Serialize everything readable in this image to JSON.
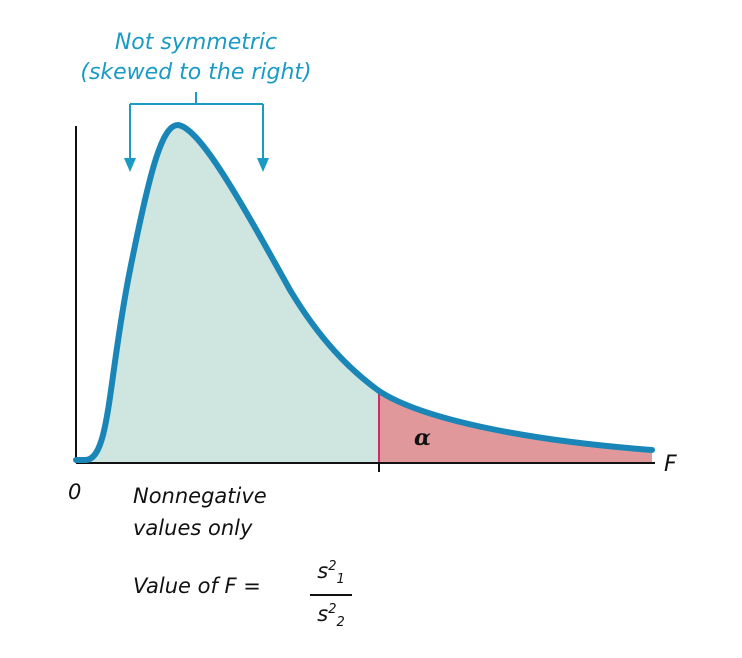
{
  "annotation": {
    "line1": "Not symmetric",
    "line2": "(skewed to the right)"
  },
  "axis": {
    "origin_label": "0",
    "x_label": "F"
  },
  "tail": {
    "symbol": "α"
  },
  "notes": {
    "nonnegative_line1": "Nonnegative",
    "nonnegative_line2": "values only",
    "formula_prefix": "Value of F =",
    "numerator_base": "s",
    "numerator_sup": "2",
    "numerator_sub": "1",
    "denominator_base": "s",
    "denominator_sup": "2",
    "denominator_sub": "2"
  },
  "colors": {
    "curve": "#1a86b8",
    "body_fill": "#cfe6e0",
    "tail_fill": "#e0989a",
    "critical_line": "#d02a6a",
    "annotation": "#1a9bc4",
    "axis": "#111111"
  }
}
